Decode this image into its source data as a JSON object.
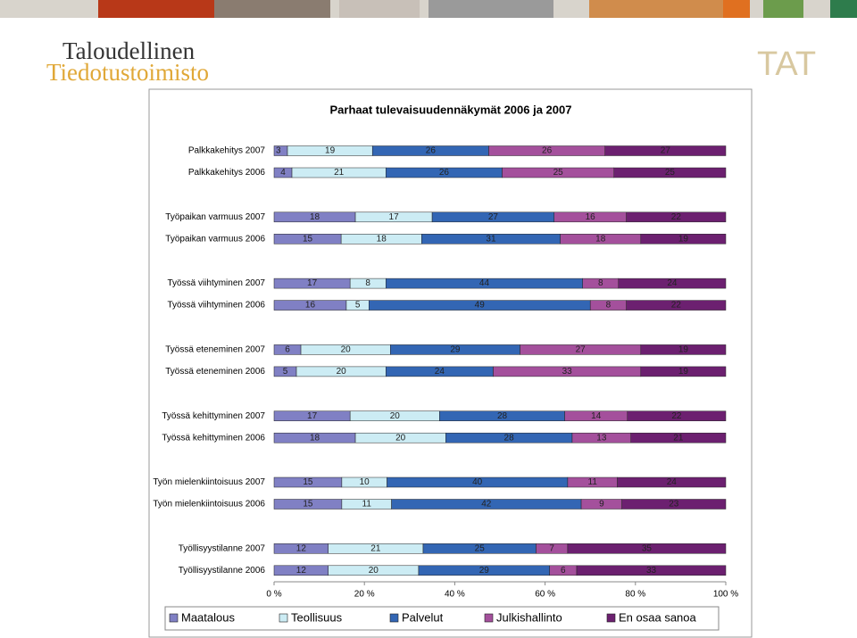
{
  "header": {
    "logo_line1": "Taloudellinen",
    "logo_line2": "Tiedotustoimisto",
    "logo_short": "TAT"
  },
  "chart_data": {
    "type": "stacked_bar_percent",
    "orientation": "horizontal",
    "title": "Parhaat tulevaisuudennäkymät 2006 ja 2007",
    "categories": [
      "Palkkakehitys 2007",
      "Palkkakehitys 2006",
      "Työpaikan varmuus 2007",
      "Työpaikan varmuus 2006",
      "Työssä viihtyminen 2007",
      "Työssä viihtyminen 2006",
      "Työssä eteneminen 2007",
      "Työssä eteneminen 2006",
      "Työssä kehittyminen 2007",
      "Työssä kehittyminen 2006",
      "Työn mielenkiintoisuus 2007",
      "Työn mielenkiintoisuus 2006",
      "Työllisyystilanne 2007",
      "Työllisyystilanne 2006"
    ],
    "series": [
      {
        "name": "Maatalous",
        "color": "#8080c4",
        "values": [
          3,
          4,
          18,
          15,
          17,
          16,
          6,
          5,
          17,
          18,
          15,
          15,
          12,
          12
        ]
      },
      {
        "name": "Teollisuus",
        "color": "#ccecf4",
        "values": [
          19,
          21,
          17,
          18,
          8,
          5,
          20,
          20,
          20,
          20,
          10,
          11,
          21,
          20
        ]
      },
      {
        "name": "Palvelut",
        "color": "#3366b4",
        "values": [
          26,
          26,
          27,
          31,
          44,
          49,
          29,
          24,
          28,
          28,
          40,
          42,
          25,
          29
        ]
      },
      {
        "name": "Julkishallinto",
        "color": "#a4509c",
        "values": [
          26,
          25,
          16,
          18,
          8,
          8,
          27,
          33,
          14,
          13,
          11,
          9,
          7,
          6
        ]
      },
      {
        "name": "En osaa sanoa",
        "color": "#6c2070",
        "values": [
          27,
          25,
          22,
          19,
          24,
          22,
          19,
          19,
          22,
          21,
          24,
          23,
          35,
          33
        ]
      }
    ],
    "xlim": [
      0,
      100
    ],
    "xticks": [
      {
        "value": 0,
        "label": "0 %"
      },
      {
        "value": 20,
        "label": "20 %"
      },
      {
        "value": 40,
        "label": "40 %"
      },
      {
        "value": 60,
        "label": "60 %"
      },
      {
        "value": 80,
        "label": "80 %"
      },
      {
        "value": 100,
        "label": "100 %"
      }
    ],
    "legend": "bottom"
  }
}
